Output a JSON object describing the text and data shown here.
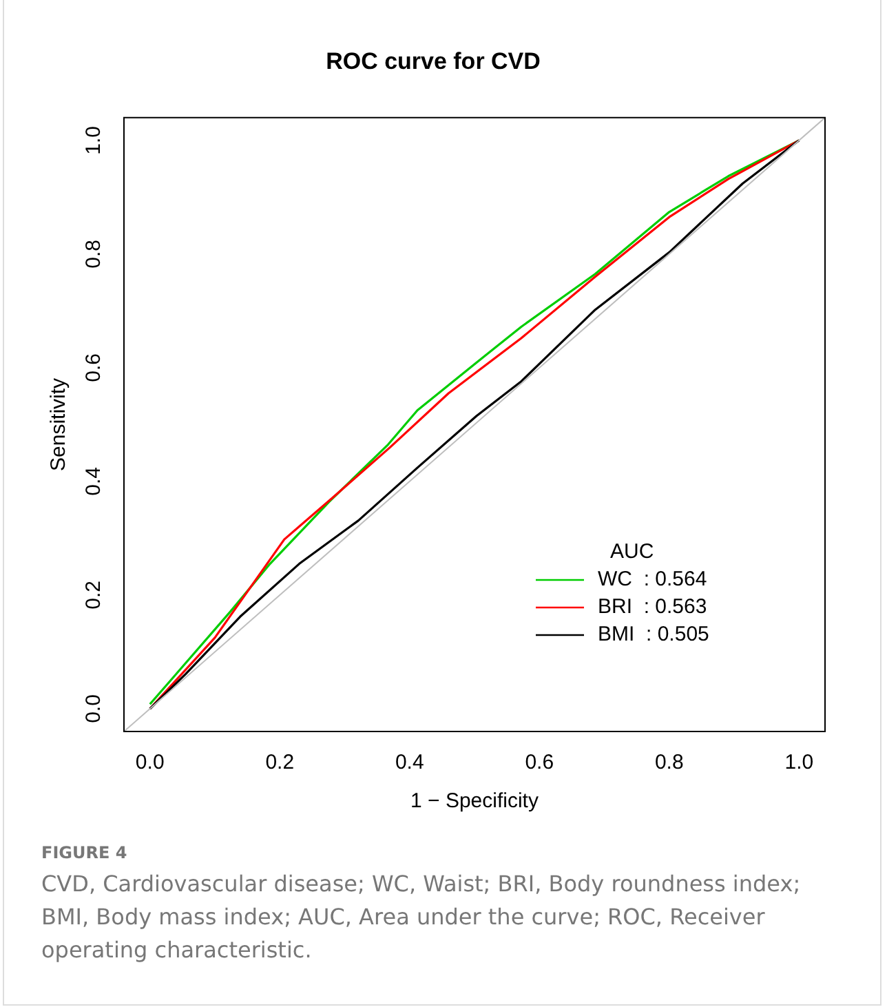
{
  "chart_data": {
    "type": "line",
    "title": "ROC curve for CVD",
    "xlabel": "1 − Specificity",
    "ylabel": "Sensitivity",
    "legend_title": "AUC",
    "legend": "bottom right",
    "marker": "none",
    "line_style": "solid",
    "grid": false,
    "xlim": [
      -0.04,
      1.04
    ],
    "xticks": [
      {
        "value": 0,
        "label": "0.0"
      },
      {
        "value": 0.2,
        "label": "0.2"
      },
      {
        "value": 0.4,
        "label": "0.4"
      },
      {
        "value": 0.6,
        "label": "0.6"
      },
      {
        "value": 0.8,
        "label": "0.8"
      },
      {
        "value": 1,
        "label": "1.0"
      }
    ],
    "ylim": [
      -0.04,
      1.04
    ],
    "yticks": [
      {
        "value": 0,
        "label": "0.0"
      },
      {
        "value": 0.2,
        "label": "0.2"
      },
      {
        "value": 0.4,
        "label": "0.4"
      },
      {
        "value": 0.6,
        "label": "0.6"
      },
      {
        "value": 0.8,
        "label": "0.8"
      },
      {
        "value": 1,
        "label": "1.0"
      }
    ],
    "series": [
      {
        "color": "#bebebe",
        "x": [
          -0.04,
          1.04
        ],
        "values": [
          -0.04,
          1.04
        ]
      },
      {
        "name": "BMI  : 0.505",
        "color": "#000000",
        "x": [
          0,
          0.055,
          0.139,
          0.23,
          0.321,
          0.412,
          0.503,
          0.572,
          0.686,
          0.8,
          0.913,
          1
        ],
        "values": [
          0,
          0.061,
          0.162,
          0.255,
          0.331,
          0.424,
          0.515,
          0.576,
          0.702,
          0.803,
          0.924,
          1
        ]
      },
      {
        "name": "BRI  : 0.563",
        "color": "#ff0000",
        "x": [
          0,
          0.1,
          0.207,
          0.28,
          0.37,
          0.46,
          0.572,
          0.686,
          0.8,
          0.891,
          1
        ],
        "values": [
          0,
          0.125,
          0.298,
          0.37,
          0.46,
          0.555,
          0.652,
          0.76,
          0.865,
          0.932,
          1
        ]
      },
      {
        "name": "WC  : 0.564",
        "color": "#00cd00",
        "x": [
          0,
          0.124,
          0.185,
          0.276,
          0.367,
          0.412,
          0.503,
          0.572,
          0.686,
          0.8,
          0.891,
          1
        ],
        "values": [
          0.008,
          0.171,
          0.255,
          0.364,
          0.465,
          0.525,
          0.609,
          0.672,
          0.765,
          0.874,
          0.937,
          1
        ]
      }
    ],
    "annotations": [
      "FIGURE 4",
      "CVD, Cardiovascular disease; WC, Waist; BRI, Body roundness index; BMI, Body mass index; AUC, Area under the curve; ROC, Receiver operating characteristic."
    ]
  }
}
